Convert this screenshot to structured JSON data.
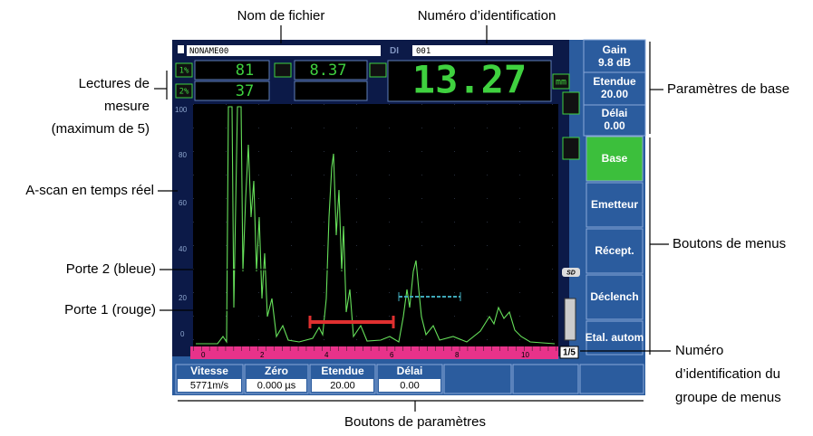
{
  "annotations": {
    "file_name": "Nom de fichier",
    "id_number": "Numéro d’identification",
    "readings": [
      "Lectures de",
      "mesure",
      "(maximum de 5)"
    ],
    "ascan": "A-scan en temps réel",
    "gate2": "Porte 2 (bleue)",
    "gate1": "Porte 1 (rouge)",
    "base_params": "Paramètres de base",
    "menu_buttons": "Boutons de menus",
    "menu_group": [
      "Numéro",
      "d’identification du",
      "groupe de menus"
    ],
    "param_buttons": "Boutons de paramètres"
  },
  "screen": {
    "file_name": "NONAME00",
    "di_label": "DI",
    "id_value": "001",
    "readings": {
      "r1_icon": "1%",
      "r1": "81",
      "r2_icon": "2%",
      "r2": "37",
      "r3": "8.37",
      "main": "13.27",
      "unit": "mm"
    },
    "base_params": [
      {
        "label": "Gain",
        "value": "9.8 dB"
      },
      {
        "label": "Etendue",
        "value": "20.00"
      },
      {
        "label": "Délai",
        "value": "0.00"
      }
    ],
    "menus": [
      "Base",
      "Emetteur",
      "Récept.",
      "Déclench",
      "Etal. autom"
    ],
    "y_axis": [
      "100",
      "80",
      "60",
      "40",
      "20",
      "0"
    ],
    "x_axis": [
      "0",
      "2",
      "4",
      "6",
      "8",
      "10"
    ],
    "sd": "SD",
    "menu_group": "1/5",
    "params": [
      {
        "label": "Vitesse",
        "value": "5771m/s"
      },
      {
        "label": "Zéro",
        "value": "0.000 µs"
      },
      {
        "label": "Etendue",
        "value": "20.00"
      },
      {
        "label": "Délai",
        "value": "0.00"
      }
    ]
  }
}
